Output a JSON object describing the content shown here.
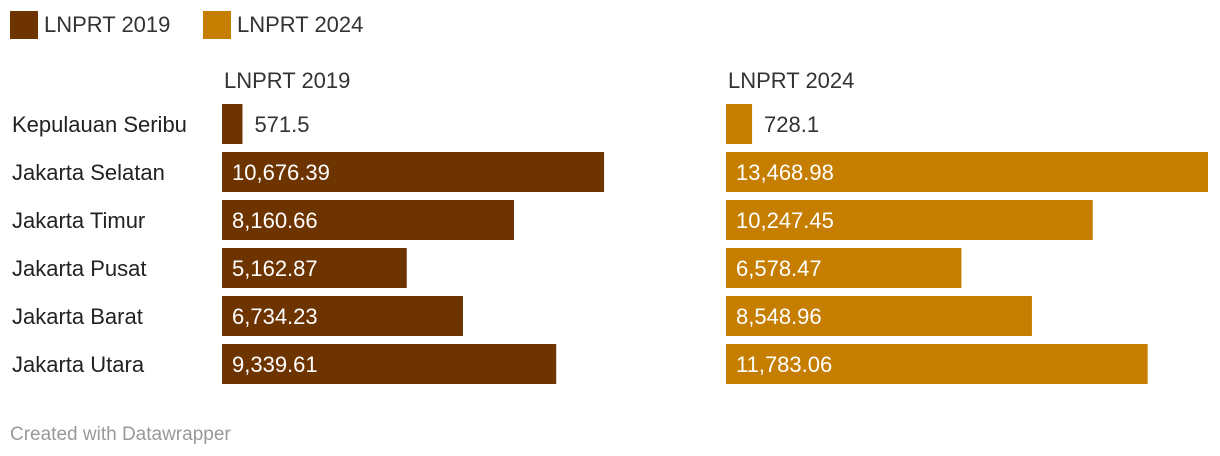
{
  "chart_data": {
    "type": "bar",
    "orientation": "horizontal",
    "layout": "small-multiples",
    "legend": [
      {
        "name": "LNPRT 2019",
        "color": "#6e3400"
      },
      {
        "name": "LNPRT 2024",
        "color": "#c67e00"
      }
    ],
    "categories": [
      "Kepulauan Seribu",
      "Jakarta Selatan",
      "Jakarta Timur",
      "Jakarta Pusat",
      "Jakarta Barat",
      "Jakarta Utara"
    ],
    "series": [
      {
        "name": "LNPRT 2019",
        "color": "#6e3400",
        "values": [
          571.5,
          10676.39,
          8160.66,
          5162.87,
          6734.23,
          9339.61
        ],
        "labels": [
          "571.5",
          "10,676.39",
          "8,160.66",
          "5,162.87",
          "6,734.23",
          "9,339.61"
        ]
      },
      {
        "name": "LNPRT 2024",
        "color": "#c67e00",
        "values": [
          728.1,
          13468.98,
          10247.45,
          6578.47,
          8548.96,
          11783.06
        ],
        "labels": [
          "728.1",
          "13,468.98",
          "10,247.45",
          "6,578.47",
          "8,548.96",
          "11,783.06"
        ]
      }
    ],
    "xlim": [
      0,
      13468.98
    ],
    "grid": false,
    "legend_position": "top-left"
  },
  "footer": {
    "credit": "Created with Datawrapper"
  }
}
